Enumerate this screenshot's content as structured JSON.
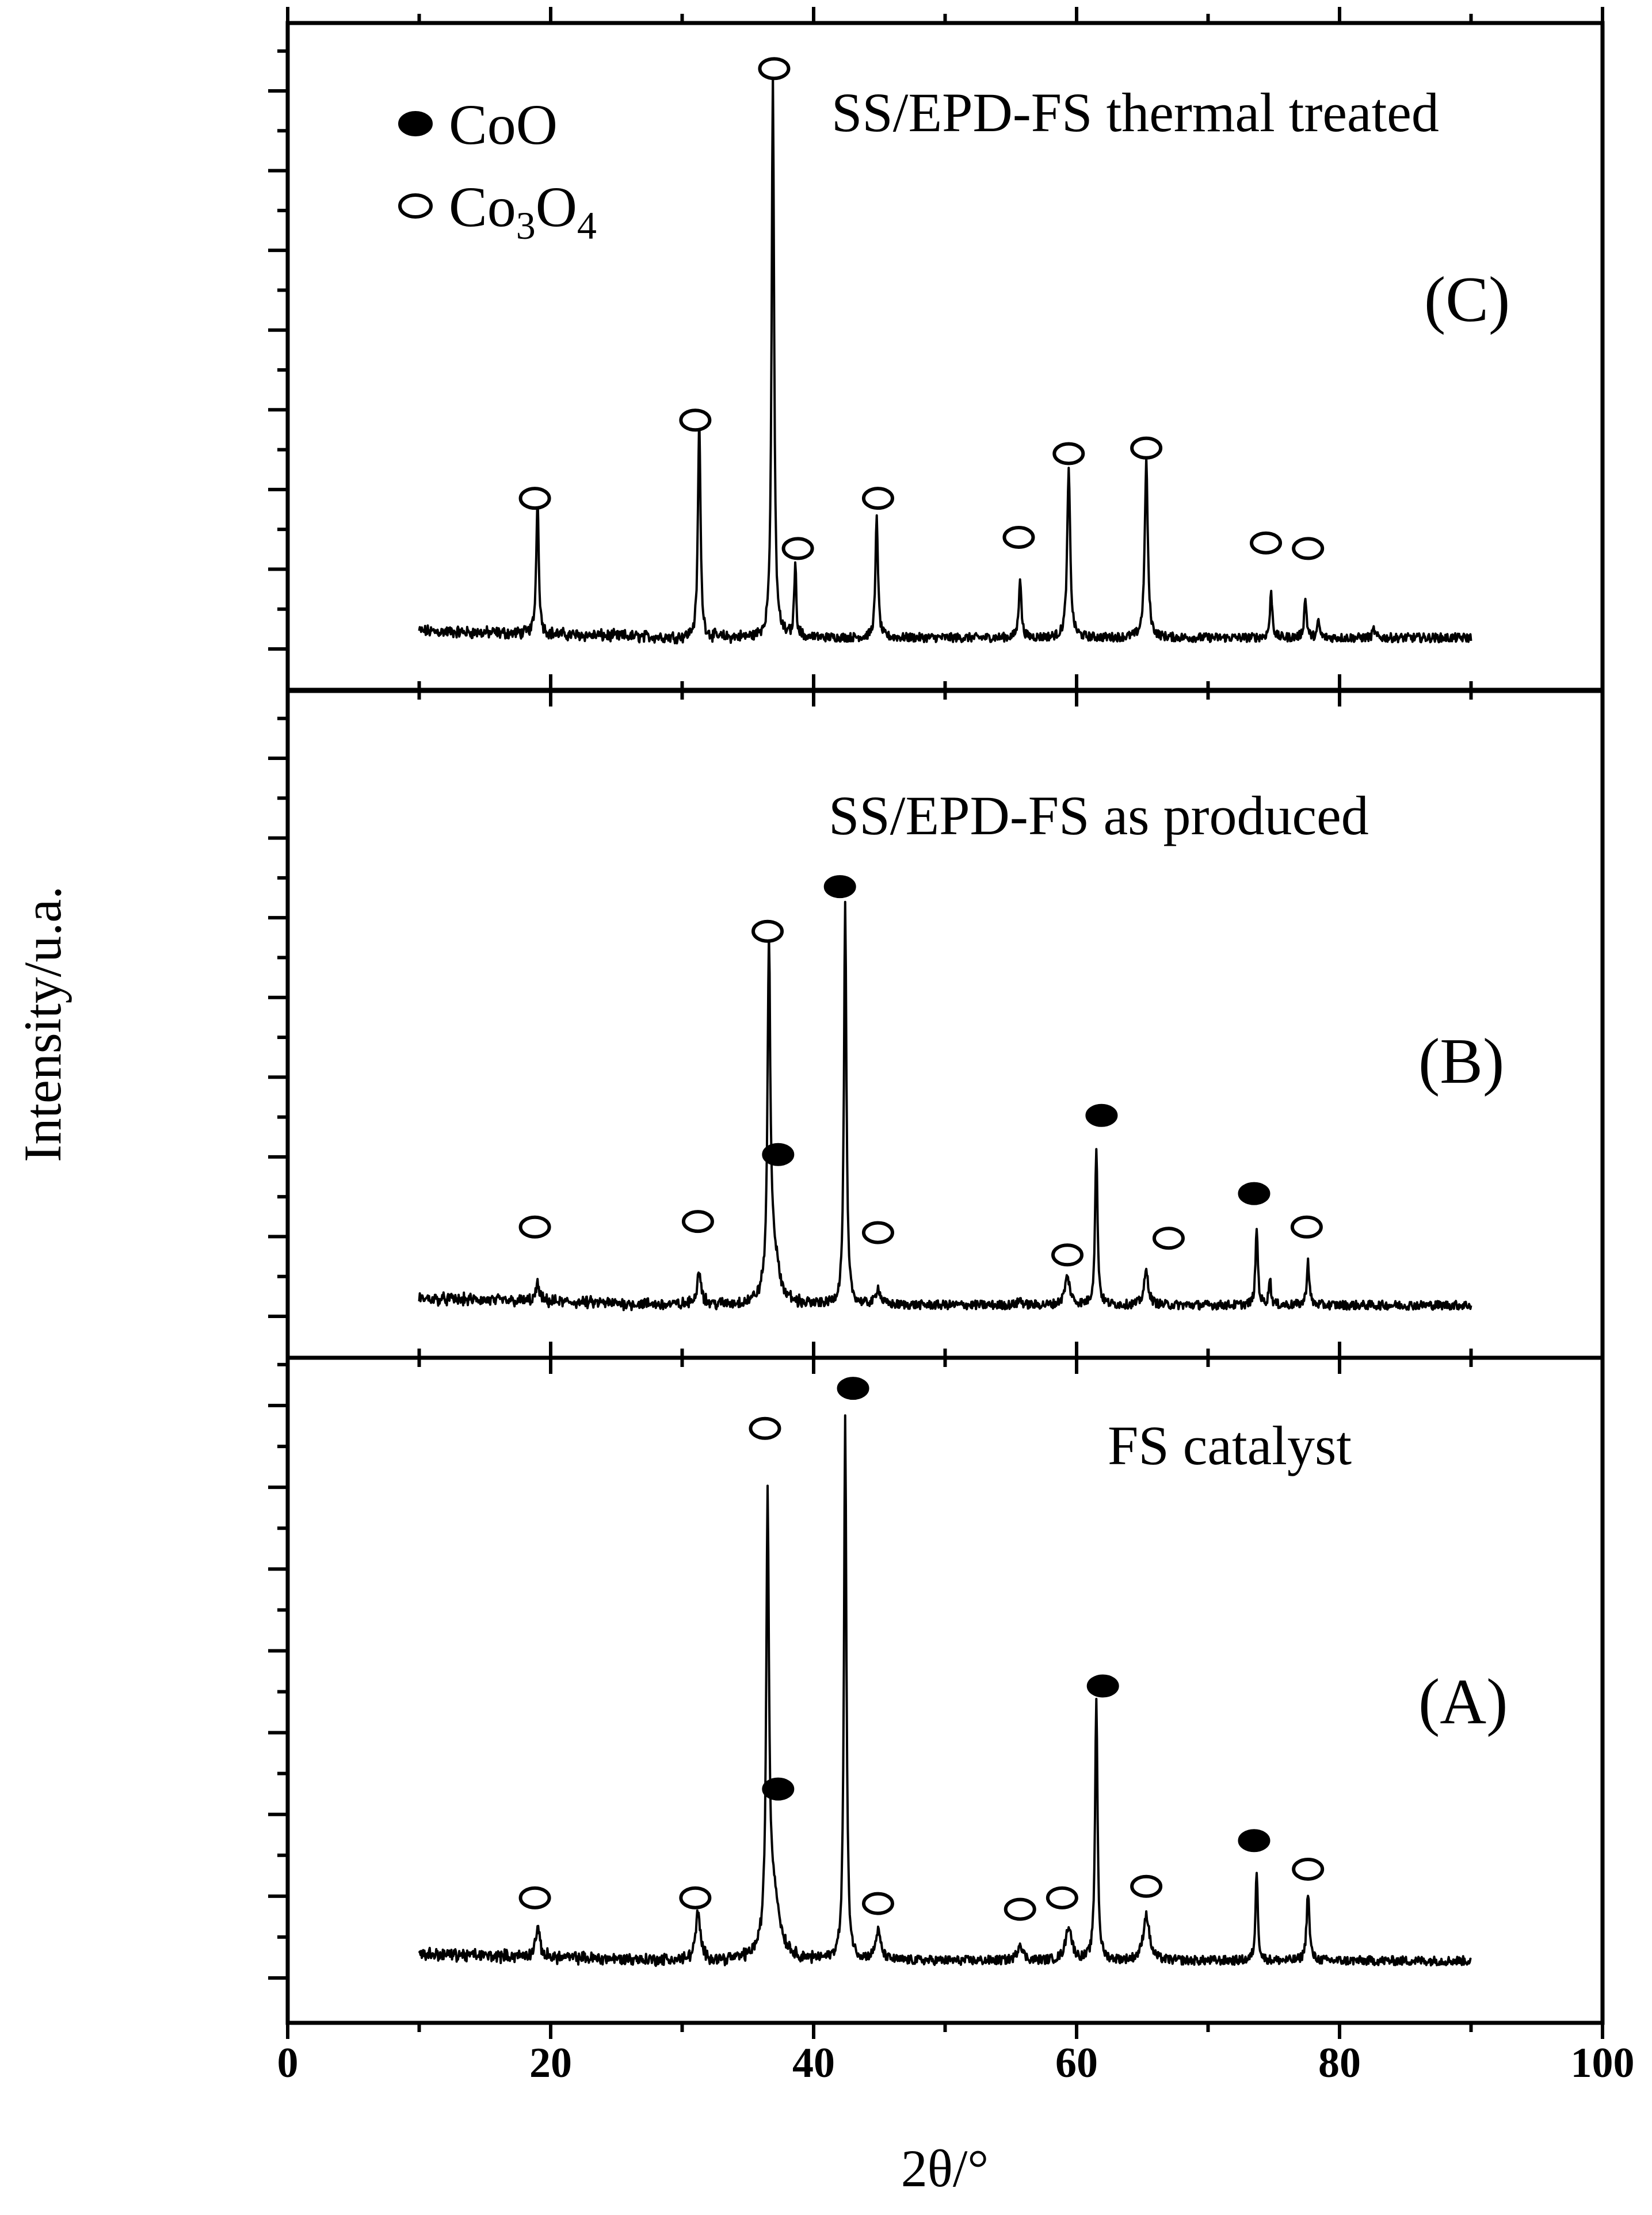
{
  "chart_data": {
    "type": "line",
    "title": "",
    "xlabel": "2θ/°",
    "ylabel": "Intensity/u.a.",
    "xlim": [
      0,
      100
    ],
    "xticks": [
      "0",
      "20",
      "40",
      "60",
      "80",
      "100"
    ],
    "grid": false,
    "legend": {
      "position": "top-left",
      "entries": [
        {
          "marker": "filled",
          "label": "CoO"
        },
        {
          "marker": "open",
          "label_main": "Co",
          "sub1": "3",
          "mid": "O",
          "sub2": "4",
          "label": "Co3O4"
        }
      ]
    },
    "panels": [
      {
        "id": "C",
        "label": "(C)",
        "title": "SS/EPD-FS thermal treated",
        "baseline": 0.02,
        "peaks": [
          {
            "x": 19.0,
            "y": 0.25,
            "w": 0.14
          },
          {
            "x": 31.3,
            "y": 0.4,
            "w": 0.14
          },
          {
            "x": 36.9,
            "y": 1.0,
            "w": 0.14
          },
          {
            "x": 38.6,
            "y": 0.13,
            "w": 0.12
          },
          {
            "x": 44.8,
            "y": 0.22,
            "w": 0.14
          },
          {
            "x": 55.7,
            "y": 0.11,
            "w": 0.14
          },
          {
            "x": 59.4,
            "y": 0.3,
            "w": 0.17
          },
          {
            "x": 65.3,
            "y": 0.32,
            "w": 0.17
          },
          {
            "x": 74.8,
            "y": 0.08,
            "w": 0.14
          },
          {
            "x": 77.4,
            "y": 0.07,
            "w": 0.14
          },
          {
            "x": 78.4,
            "y": 0.03,
            "w": 0.12
          },
          {
            "x": 82.6,
            "y": 0.015,
            "w": 0.14
          }
        ],
        "markers": [
          {
            "x": 18.8,
            "y": 0.27,
            "type": "open"
          },
          {
            "x": 31.0,
            "y": 0.41,
            "type": "open"
          },
          {
            "x": 37.0,
            "y": 1.04,
            "type": "open"
          },
          {
            "x": 38.8,
            "y": 0.18,
            "type": "open"
          },
          {
            "x": 44.9,
            "y": 0.27,
            "type": "open"
          },
          {
            "x": 55.6,
            "y": 0.2,
            "type": "open"
          },
          {
            "x": 59.4,
            "y": 0.35,
            "type": "open"
          },
          {
            "x": 65.3,
            "y": 0.36,
            "type": "open"
          },
          {
            "x": 74.4,
            "y": 0.19,
            "type": "open"
          },
          {
            "x": 77.6,
            "y": 0.18,
            "type": "open"
          }
        ]
      },
      {
        "id": "B",
        "label": "(B)",
        "title": "SS/EPD-FS as produced",
        "baseline": 0.02,
        "peaks": [
          {
            "x": 19.0,
            "y": 0.03,
            "w": 0.2
          },
          {
            "x": 31.3,
            "y": 0.06,
            "w": 0.25
          },
          {
            "x": 36.6,
            "y": 0.6,
            "w": 0.15
          },
          {
            "x": 36.9,
            "y": 0.1,
            "w": 0.6
          },
          {
            "x": 42.4,
            "y": 0.72,
            "w": 0.14
          },
          {
            "x": 44.9,
            "y": 0.03,
            "w": 0.25
          },
          {
            "x": 55.7,
            "y": 0.01,
            "w": 0.2
          },
          {
            "x": 59.3,
            "y": 0.05,
            "w": 0.3
          },
          {
            "x": 61.5,
            "y": 0.28,
            "w": 0.14
          },
          {
            "x": 65.3,
            "y": 0.06,
            "w": 0.25
          },
          {
            "x": 73.7,
            "y": 0.14,
            "w": 0.13
          },
          {
            "x": 74.7,
            "y": 0.05,
            "w": 0.12
          },
          {
            "x": 77.6,
            "y": 0.08,
            "w": 0.14
          }
        ],
        "markers": [
          {
            "x": 18.8,
            "y": 0.16,
            "type": "open"
          },
          {
            "x": 31.2,
            "y": 0.17,
            "type": "open"
          },
          {
            "x": 36.5,
            "y": 0.69,
            "type": "open"
          },
          {
            "x": 37.3,
            "y": 0.29,
            "type": "filled"
          },
          {
            "x": 42.0,
            "y": 0.77,
            "type": "filled"
          },
          {
            "x": 44.9,
            "y": 0.15,
            "type": "open"
          },
          {
            "x": 59.3,
            "y": 0.11,
            "type": "open"
          },
          {
            "x": 61.9,
            "y": 0.36,
            "type": "filled"
          },
          {
            "x": 67.0,
            "y": 0.14,
            "type": "open"
          },
          {
            "x": 73.5,
            "y": 0.22,
            "type": "filled"
          },
          {
            "x": 77.5,
            "y": 0.16,
            "type": "open"
          }
        ]
      },
      {
        "id": "A",
        "label": "(A)",
        "title": "FS catalyst",
        "baseline": 0.03,
        "peaks": [
          {
            "x": 19.0,
            "y": 0.05,
            "w": 0.25
          },
          {
            "x": 31.2,
            "y": 0.08,
            "w": 0.28
          },
          {
            "x": 36.5,
            "y": 0.75,
            "w": 0.15
          },
          {
            "x": 36.9,
            "y": 0.12,
            "w": 0.7
          },
          {
            "x": 42.4,
            "y": 0.95,
            "w": 0.14
          },
          {
            "x": 44.9,
            "y": 0.05,
            "w": 0.3
          },
          {
            "x": 55.7,
            "y": 0.03,
            "w": 0.3
          },
          {
            "x": 59.4,
            "y": 0.06,
            "w": 0.35
          },
          {
            "x": 61.5,
            "y": 0.46,
            "w": 0.14
          },
          {
            "x": 65.3,
            "y": 0.08,
            "w": 0.35
          },
          {
            "x": 73.7,
            "y": 0.16,
            "w": 0.13
          },
          {
            "x": 77.6,
            "y": 0.12,
            "w": 0.16
          }
        ],
        "markers": [
          {
            "x": 18.8,
            "y": 0.14,
            "type": "open"
          },
          {
            "x": 31.0,
            "y": 0.14,
            "type": "open"
          },
          {
            "x": 36.3,
            "y": 0.96,
            "type": "open"
          },
          {
            "x": 37.3,
            "y": 0.33,
            "type": "filled"
          },
          {
            "x": 43.0,
            "y": 1.03,
            "type": "filled"
          },
          {
            "x": 44.9,
            "y": 0.13,
            "type": "open"
          },
          {
            "x": 55.7,
            "y": 0.12,
            "type": "open"
          },
          {
            "x": 58.9,
            "y": 0.14,
            "type": "open"
          },
          {
            "x": 62.0,
            "y": 0.51,
            "type": "filled"
          },
          {
            "x": 65.3,
            "y": 0.16,
            "type": "open"
          },
          {
            "x": 73.5,
            "y": 0.24,
            "type": "filled"
          },
          {
            "x": 77.6,
            "y": 0.19,
            "type": "open"
          }
        ]
      }
    ]
  }
}
